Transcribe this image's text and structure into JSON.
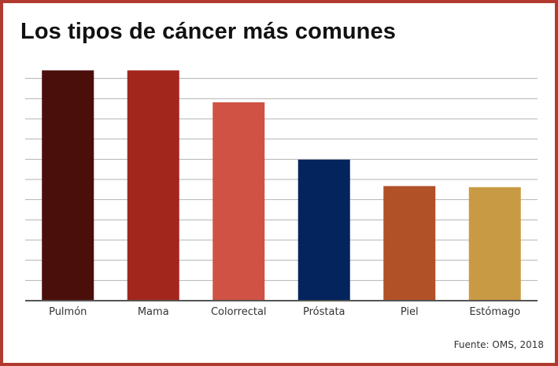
{
  "title": "Los tipos de cáncer más comunes",
  "source": "Fuente: OMS, 2018",
  "chart_data": {
    "type": "bar",
    "title": "Los tipos de cáncer más comunes",
    "xlabel": "",
    "ylabel": "",
    "categories": [
      "Pulmón",
      "Mama",
      "Colorrectal",
      "Próstata",
      "Piel",
      "Estómago"
    ],
    "values": [
      2.09,
      2.09,
      1.8,
      1.28,
      1.04,
      1.03
    ],
    "colors": [
      "#4a0e0b",
      "#a3261d",
      "#d05244",
      "#03245c",
      "#b15128",
      "#c99a44"
    ],
    "ylim": [
      0,
      2.2
    ],
    "gridlines": 11,
    "grid": true,
    "y_tick_labels_shown": false,
    "legend": "none"
  }
}
